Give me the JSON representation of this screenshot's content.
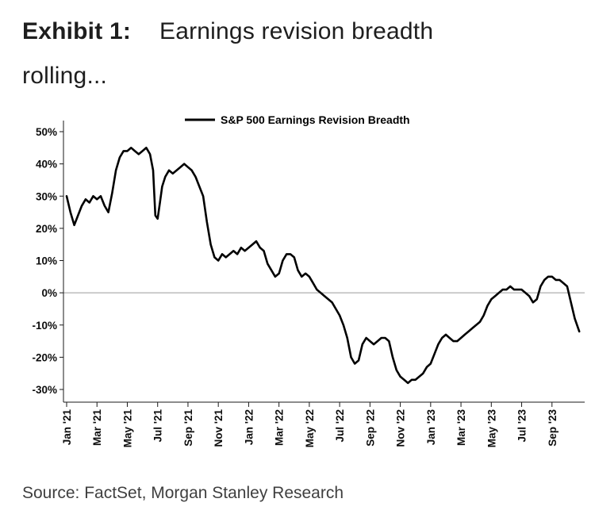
{
  "header": {
    "exhibit_label": "Exhibit 1:",
    "title": "Earnings revision breadth",
    "title_line2": "rolling..."
  },
  "source": {
    "text": "Source: FactSet, Morgan Stanley Research"
  },
  "colors": {
    "line": "#000000",
    "zero_line": "#9a9a9a",
    "axis": "#1a1a1a",
    "title_text": "#1e1e1e",
    "source_text": "#3f3f3f"
  },
  "chart_data": {
    "type": "line",
    "title": "Exhibit 1: Earnings revision breadth rolling...",
    "xlabel": "",
    "ylabel": "",
    "x_unit": "months since Jan 2021",
    "ylim": [
      -33,
      53
    ],
    "xlim": [
      0,
      34
    ],
    "grid": false,
    "zero_line": true,
    "legend_position": "top-center",
    "y_ticks": [
      50,
      40,
      30,
      20,
      10,
      0,
      -10,
      -20,
      -30
    ],
    "y_tick_suffix": "%",
    "x_tick_labels": [
      "Jan '21",
      "Mar '21",
      "May '21",
      "Jul '21",
      "Sep '21",
      "Nov '21",
      "Jan '22",
      "Mar '22",
      "May '22",
      "Jul '22",
      "Sep '22",
      "Nov '22",
      "Jan '23",
      "Mar '23",
      "May '23",
      "Jul '23",
      "Sep '23"
    ],
    "x_tick_positions": [
      0,
      2,
      4,
      6,
      8,
      10,
      12,
      14,
      16,
      18,
      20,
      22,
      24,
      26,
      28,
      30,
      32
    ],
    "series": [
      {
        "name": "S&P 500 Earnings Revision Breadth",
        "color": "#000000",
        "points": [
          [
            0,
            30
          ],
          [
            0.25,
            25
          ],
          [
            0.5,
            21
          ],
          [
            0.75,
            24
          ],
          [
            1,
            27
          ],
          [
            1.25,
            29
          ],
          [
            1.5,
            28
          ],
          [
            1.75,
            30
          ],
          [
            2,
            29
          ],
          [
            2.25,
            30
          ],
          [
            2.5,
            27
          ],
          [
            2.75,
            25
          ],
          [
            3,
            31
          ],
          [
            3.25,
            38
          ],
          [
            3.5,
            42
          ],
          [
            3.75,
            44
          ],
          [
            4,
            44
          ],
          [
            4.25,
            45
          ],
          [
            4.5,
            44
          ],
          [
            4.75,
            43
          ],
          [
            5,
            44
          ],
          [
            5.25,
            45
          ],
          [
            5.5,
            43
          ],
          [
            5.7,
            38
          ],
          [
            5.85,
            24
          ],
          [
            6,
            23
          ],
          [
            6.15,
            28
          ],
          [
            6.3,
            33
          ],
          [
            6.5,
            36
          ],
          [
            6.75,
            38
          ],
          [
            7,
            37
          ],
          [
            7.25,
            38
          ],
          [
            7.5,
            39
          ],
          [
            7.75,
            40
          ],
          [
            8,
            39
          ],
          [
            8.25,
            38
          ],
          [
            8.5,
            36
          ],
          [
            8.75,
            33
          ],
          [
            9,
            30
          ],
          [
            9.25,
            22
          ],
          [
            9.5,
            15
          ],
          [
            9.75,
            11
          ],
          [
            10,
            10
          ],
          [
            10.25,
            12
          ],
          [
            10.5,
            11
          ],
          [
            10.75,
            12
          ],
          [
            11,
            13
          ],
          [
            11.25,
            12
          ],
          [
            11.5,
            14
          ],
          [
            11.75,
            13
          ],
          [
            12,
            14
          ],
          [
            12.25,
            15
          ],
          [
            12.5,
            16
          ],
          [
            12.75,
            14
          ],
          [
            13,
            13
          ],
          [
            13.25,
            9
          ],
          [
            13.5,
            7
          ],
          [
            13.75,
            5
          ],
          [
            14,
            6
          ],
          [
            14.25,
            10
          ],
          [
            14.5,
            12
          ],
          [
            14.75,
            12
          ],
          [
            15,
            11
          ],
          [
            15.25,
            7
          ],
          [
            15.5,
            5
          ],
          [
            15.75,
            6
          ],
          [
            16,
            5
          ],
          [
            16.25,
            3
          ],
          [
            16.5,
            1
          ],
          [
            16.75,
            0
          ],
          [
            17,
            -1
          ],
          [
            17.25,
            -2
          ],
          [
            17.5,
            -3
          ],
          [
            17.75,
            -5
          ],
          [
            18,
            -7
          ],
          [
            18.25,
            -10
          ],
          [
            18.5,
            -14
          ],
          [
            18.75,
            -20
          ],
          [
            19,
            -22
          ],
          [
            19.25,
            -21
          ],
          [
            19.5,
            -16
          ],
          [
            19.75,
            -14
          ],
          [
            20,
            -15
          ],
          [
            20.25,
            -16
          ],
          [
            20.5,
            -15
          ],
          [
            20.75,
            -14
          ],
          [
            21,
            -14
          ],
          [
            21.25,
            -15
          ],
          [
            21.5,
            -20
          ],
          [
            21.75,
            -24
          ],
          [
            22,
            -26
          ],
          [
            22.25,
            -27
          ],
          [
            22.5,
            -28
          ],
          [
            22.75,
            -27
          ],
          [
            23,
            -27
          ],
          [
            23.25,
            -26
          ],
          [
            23.5,
            -25
          ],
          [
            23.75,
            -23
          ],
          [
            24,
            -22
          ],
          [
            24.25,
            -19
          ],
          [
            24.5,
            -16
          ],
          [
            24.75,
            -14
          ],
          [
            25,
            -13
          ],
          [
            25.25,
            -14
          ],
          [
            25.5,
            -15
          ],
          [
            25.75,
            -15
          ],
          [
            26,
            -14
          ],
          [
            26.25,
            -13
          ],
          [
            26.5,
            -12
          ],
          [
            26.75,
            -11
          ],
          [
            27,
            -10
          ],
          [
            27.25,
            -9
          ],
          [
            27.5,
            -7
          ],
          [
            27.75,
            -4
          ],
          [
            28,
            -2
          ],
          [
            28.25,
            -1
          ],
          [
            28.5,
            0
          ],
          [
            28.75,
            1
          ],
          [
            29,
            1
          ],
          [
            29.25,
            2
          ],
          [
            29.5,
            1
          ],
          [
            29.75,
            1
          ],
          [
            30,
            1
          ],
          [
            30.25,
            0
          ],
          [
            30.5,
            -1
          ],
          [
            30.75,
            -3
          ],
          [
            31,
            -2
          ],
          [
            31.25,
            2
          ],
          [
            31.5,
            4
          ],
          [
            31.75,
            5
          ],
          [
            32,
            5
          ],
          [
            32.25,
            4
          ],
          [
            32.5,
            4
          ],
          [
            32.75,
            3
          ],
          [
            33,
            2
          ],
          [
            33.25,
            -3
          ],
          [
            33.5,
            -8
          ],
          [
            33.8,
            -12
          ]
        ]
      }
    ]
  }
}
